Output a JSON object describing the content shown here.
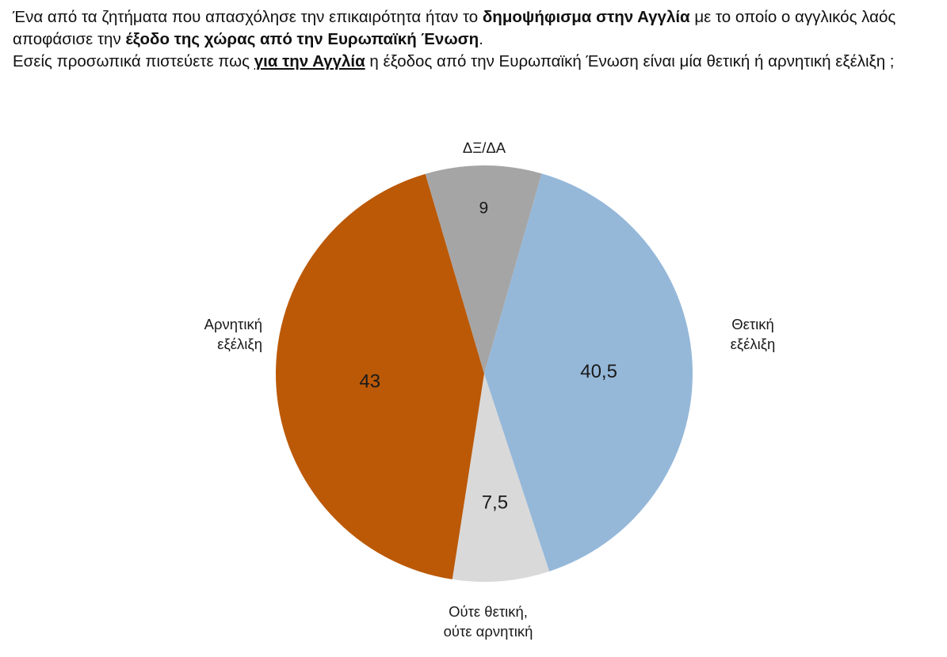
{
  "question": {
    "line1_part1": "Ένα από τα ζητήματα που απασχόλησε την επικαιρότητα ήταν το ",
    "line1_bold1": "δημοψήφισμα στην Αγγλία",
    "line1_part2": " με το οποίο ο αγγλικός λαός αποφάσισε την ",
    "line1_bold2": "έξοδο της χώρας από την Ευρωπαϊκή Ένωση",
    "line1_end": ".",
    "line2_part1": "Εσείς προσωπικά πιστεύετε πως ",
    "line2_bold_underline": "για την Αγγλία",
    "line2_part2": " η έξοδος από την Ευρωπαϊκή Ένωση είναι μία θετική ή αρνητική εξέλιξη ;"
  },
  "chart_data": {
    "type": "pie",
    "title": "",
    "start_angle_deg": 16,
    "direction": "clockwise",
    "slices": [
      {
        "label_lines": [
          "Θετική",
          "εξέλιξη"
        ],
        "value": 40.5,
        "value_label": "40,5",
        "color": "#95b8d9"
      },
      {
        "label_lines": [
          "Ούτε θετική,",
          "ούτε αρνητική"
        ],
        "value": 7.5,
        "value_label": "7,5",
        "color": "#d9d9d9"
      },
      {
        "label_lines": [
          "Αρνητική",
          "εξέλιξη"
        ],
        "value": 43,
        "value_label": "43",
        "color": "#bb5907"
      },
      {
        "label_lines": [
          "ΔΞ/ΔΑ"
        ],
        "value": 9,
        "value_label": "9",
        "color": "#a5a5a5"
      }
    ]
  }
}
